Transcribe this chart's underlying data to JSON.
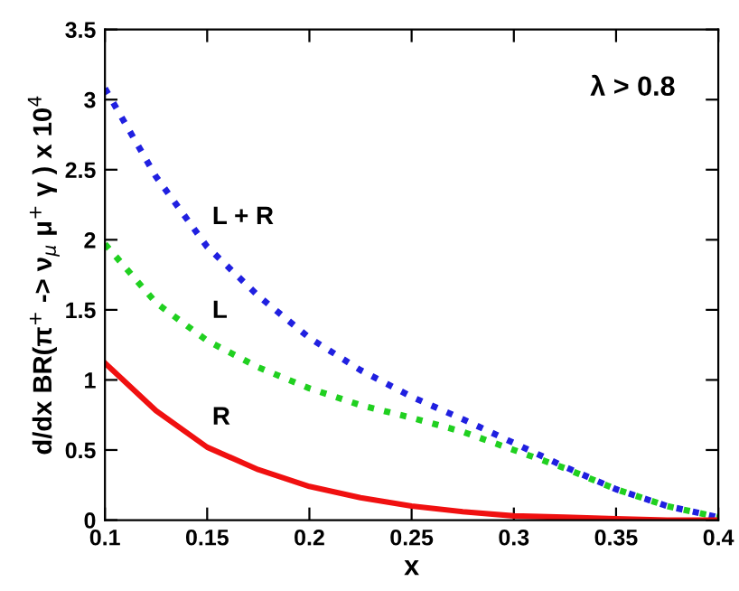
{
  "chart_data": {
    "type": "line",
    "xlabel": "x",
    "ylabel": "d/dx BR(π$^{+}$ -> ν$_{μ}$ μ$^{+}$ γ ) x 10$^{4}$",
    "x": [
      0.1,
      0.125,
      0.15,
      0.175,
      0.2,
      0.225,
      0.25,
      0.275,
      0.3,
      0.325,
      0.35,
      0.375,
      0.4
    ],
    "series": [
      {
        "name": "L + R",
        "color": "#2020e0",
        "line_style": "dotted",
        "values": [
          3.08,
          2.45,
          1.95,
          1.6,
          1.3,
          1.07,
          0.88,
          0.72,
          0.55,
          0.38,
          0.22,
          0.1,
          0.02
        ]
      },
      {
        "name": "L",
        "color": "#20d020",
        "line_style": "dotted",
        "values": [
          1.97,
          1.55,
          1.28,
          1.09,
          0.94,
          0.82,
          0.73,
          0.63,
          0.5,
          0.37,
          0.22,
          0.1,
          0.02
        ]
      },
      {
        "name": "R",
        "color": "#f01010",
        "line_style": "solid",
        "values": [
          1.12,
          0.78,
          0.52,
          0.36,
          0.24,
          0.16,
          0.1,
          0.06,
          0.03,
          0.02,
          0.01,
          0,
          0
        ]
      }
    ],
    "annotations": [
      "λ > 0.8"
    ],
    "xlim": [
      0.1,
      0.4
    ],
    "ylim": [
      0,
      3.5
    ],
    "xticks": [
      0.1,
      0.15,
      0.2,
      0.25,
      0.3,
      0.35,
      0.4
    ],
    "yticks": [
      0,
      0.5,
      1,
      1.5,
      2,
      2.5,
      3,
      3.5
    ],
    "grid": false,
    "legend": false,
    "marker": "none"
  }
}
